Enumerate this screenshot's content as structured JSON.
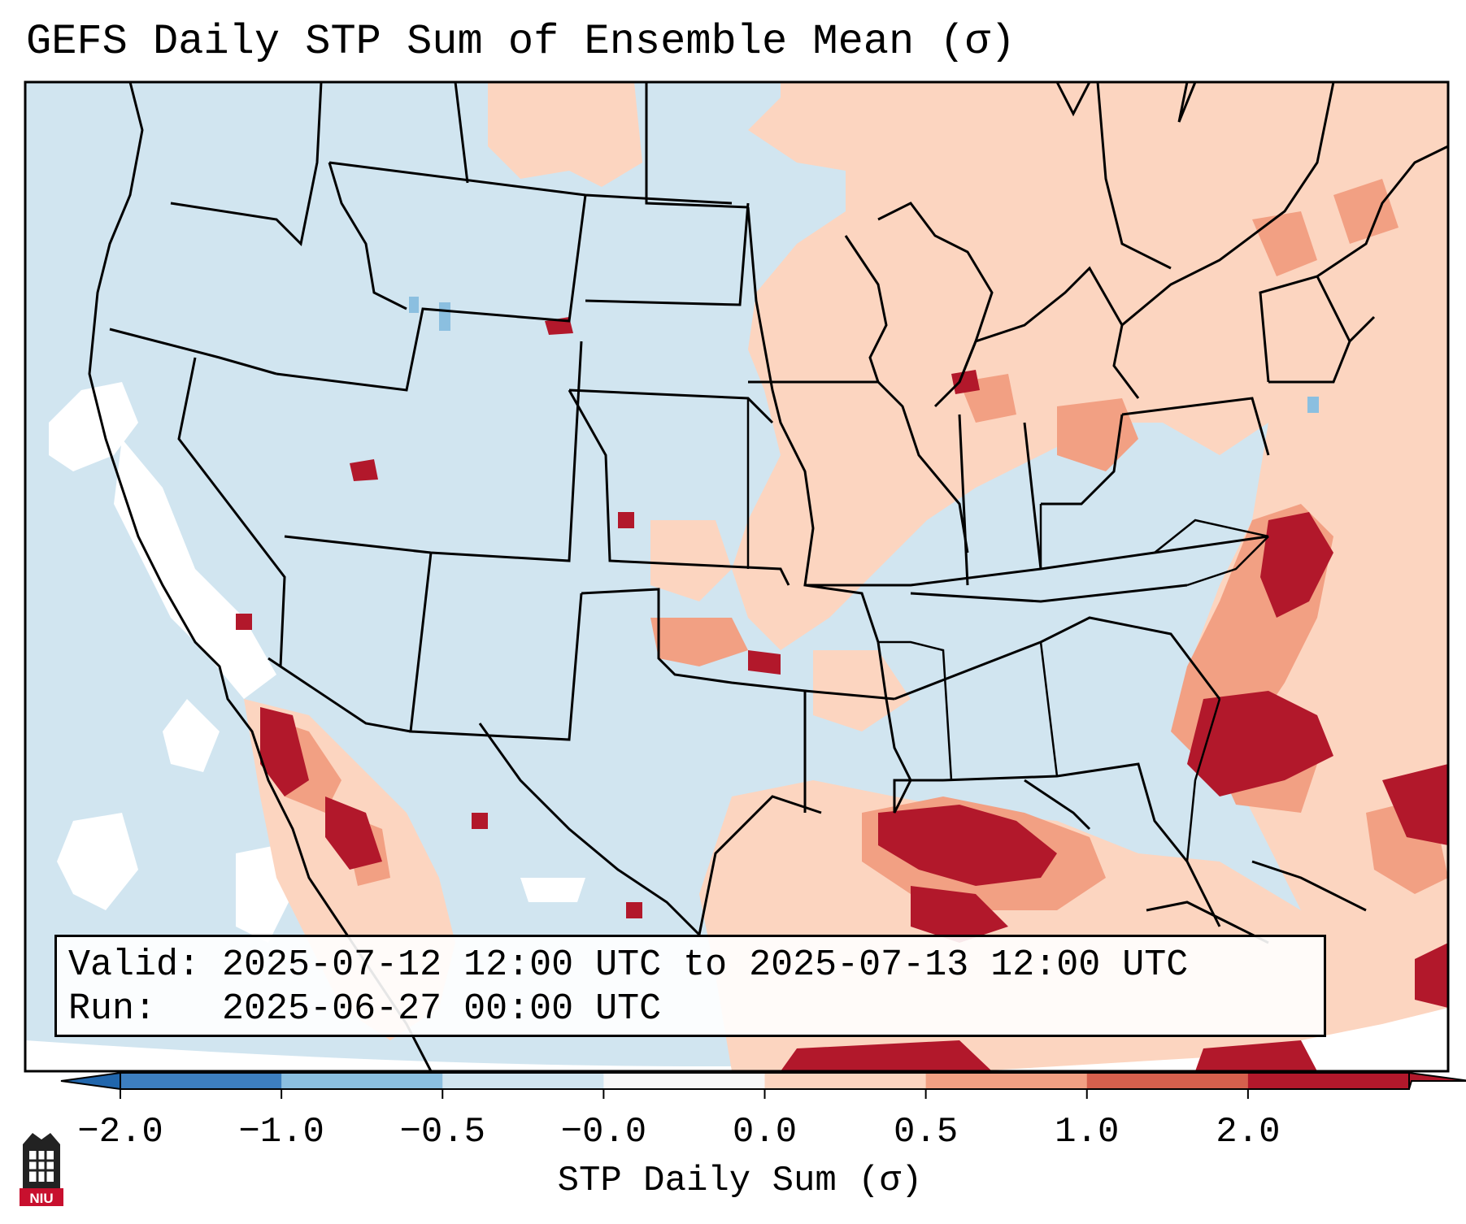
{
  "title": "GEFS Daily STP Sum of Ensemble Mean (σ)",
  "info": {
    "valid_label": "Valid:",
    "valid_value": "2025-07-12 12:00 UTC to 2025-07-13 12:00 UTC",
    "run_label": "Run:",
    "run_value": "2025-06-27 00:00 UTC"
  },
  "colorbar": {
    "label": "STP Daily Sum (σ)",
    "ticks": [
      "−2.0",
      "−1.0",
      "−0.5",
      "−0.0",
      "0.0",
      "0.5",
      "1.0",
      "2.0"
    ],
    "colors": [
      "#3d7fc0",
      "#8bbfe0",
      "#d1e5f0",
      "#f7f7f7",
      "#fcd5c0",
      "#f2a083",
      "#d6604d",
      "#b2182b"
    ],
    "under_color": "#2166ac",
    "over_color": "#b2182b"
  },
  "map": {
    "background_color": "#d1e5f0",
    "region": "Continental United States",
    "projection": "Lambert Conformal"
  },
  "logo": {
    "text": "NIU",
    "color": "#c8102e"
  }
}
